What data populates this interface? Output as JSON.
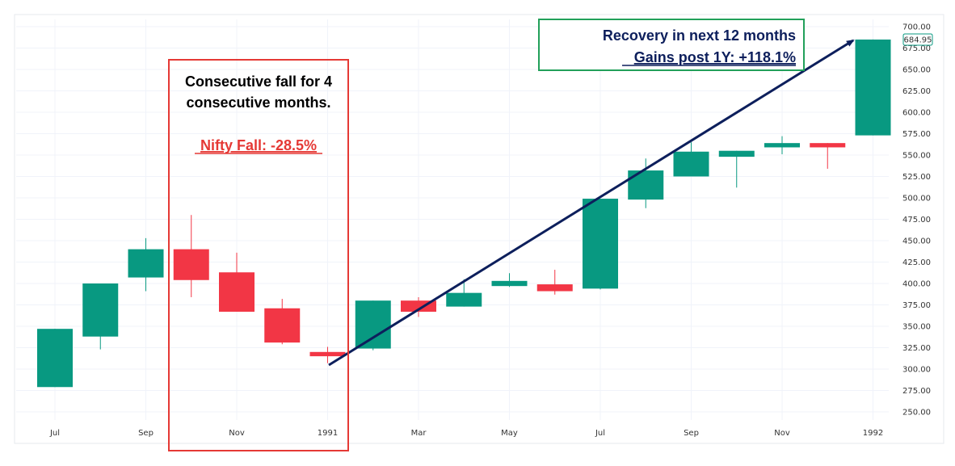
{
  "chart_data": {
    "type": "candlestick",
    "ylim": [
      240,
      710
    ],
    "y_ticks": [
      "250.00",
      "275.00",
      "300.00",
      "325.00",
      "350.00",
      "375.00",
      "400.00",
      "425.00",
      "450.00",
      "475.00",
      "500.00",
      "525.00",
      "550.00",
      "575.00",
      "600.00",
      "625.00",
      "650.00",
      "675.00",
      "700.00"
    ],
    "x_tick_labels": [
      {
        "label": "Jul",
        "month_index": 0
      },
      {
        "label": "Sep",
        "month_index": 2
      },
      {
        "label": "Nov",
        "month_index": 4
      },
      {
        "label": "1991",
        "month_index": 6
      },
      {
        "label": "Mar",
        "month_index": 8
      },
      {
        "label": "May",
        "month_index": 10
      },
      {
        "label": "Jul",
        "month_index": 12
      },
      {
        "label": "Sep",
        "month_index": 14
      },
      {
        "label": "Nov",
        "month_index": 16
      },
      {
        "label": "1992",
        "month_index": 18
      }
    ],
    "candles": [
      {
        "month": "Jul 1990",
        "open": 279,
        "high": 347,
        "low": 279,
        "close": 347
      },
      {
        "month": "Aug 1990",
        "open": 338,
        "high": 400,
        "low": 323,
        "close": 400
      },
      {
        "month": "Sep 1990",
        "open": 407,
        "high": 453,
        "low": 391,
        "close": 440
      },
      {
        "month": "Oct 1990",
        "open": 440,
        "high": 480,
        "low": 384,
        "close": 404
      },
      {
        "month": "Nov 1990",
        "open": 413,
        "high": 436,
        "low": 367,
        "close": 367
      },
      {
        "month": "Dec 1990",
        "open": 371,
        "high": 382,
        "low": 329,
        "close": 331
      },
      {
        "month": "Jan 1991",
        "open": 320,
        "high": 326,
        "low": 307,
        "close": 315
      },
      {
        "month": "Feb 1991",
        "open": 324,
        "high": 380,
        "low": 322,
        "close": 380
      },
      {
        "month": "Mar 1991",
        "open": 380,
        "high": 384,
        "low": 361,
        "close": 367
      },
      {
        "month": "Apr 1991",
        "open": 373,
        "high": 405,
        "low": 373,
        "close": 389
      },
      {
        "month": "May 1991",
        "open": 397,
        "high": 412,
        "low": 396,
        "close": 403
      },
      {
        "month": "Jun 1991",
        "open": 399,
        "high": 416,
        "low": 387,
        "close": 391
      },
      {
        "month": "Jul 1991",
        "open": 394,
        "high": 499,
        "low": 393,
        "close": 499
      },
      {
        "month": "Aug 1991",
        "open": 498,
        "high": 546,
        "low": 488,
        "close": 532
      },
      {
        "month": "Sep 1991",
        "open": 525,
        "high": 565,
        "low": 525,
        "close": 554
      },
      {
        "month": "Oct 1991",
        "open": 548,
        "high": 555,
        "low": 512,
        "close": 555
      },
      {
        "month": "Nov 1991",
        "open": 559,
        "high": 572,
        "low": 551,
        "close": 564
      },
      {
        "month": "Dec 1991",
        "open": 564,
        "high": 564,
        "low": 534,
        "close": 559
      },
      {
        "month": "Jan 1992",
        "open": 573,
        "high": 685,
        "low": 573,
        "close": 684.95
      }
    ],
    "last_price_label": "684.95",
    "colors": {
      "up": "#089981",
      "down": "#f23645",
      "grid": "#f0f3fa",
      "annotation_red": "#e53935",
      "annotation_green": "#22a05a",
      "arrow": "#0d1f5c"
    }
  },
  "annotations": {
    "fall_box": {
      "line1": "Consecutive fall for 4",
      "line2": "consecutive months.",
      "highlight": "Nifty Fall: -28.5%"
    },
    "recovery_box": {
      "line1": "Recovery in next 12 months",
      "highlight": "Gains post 1Y: +118.1%"
    }
  }
}
